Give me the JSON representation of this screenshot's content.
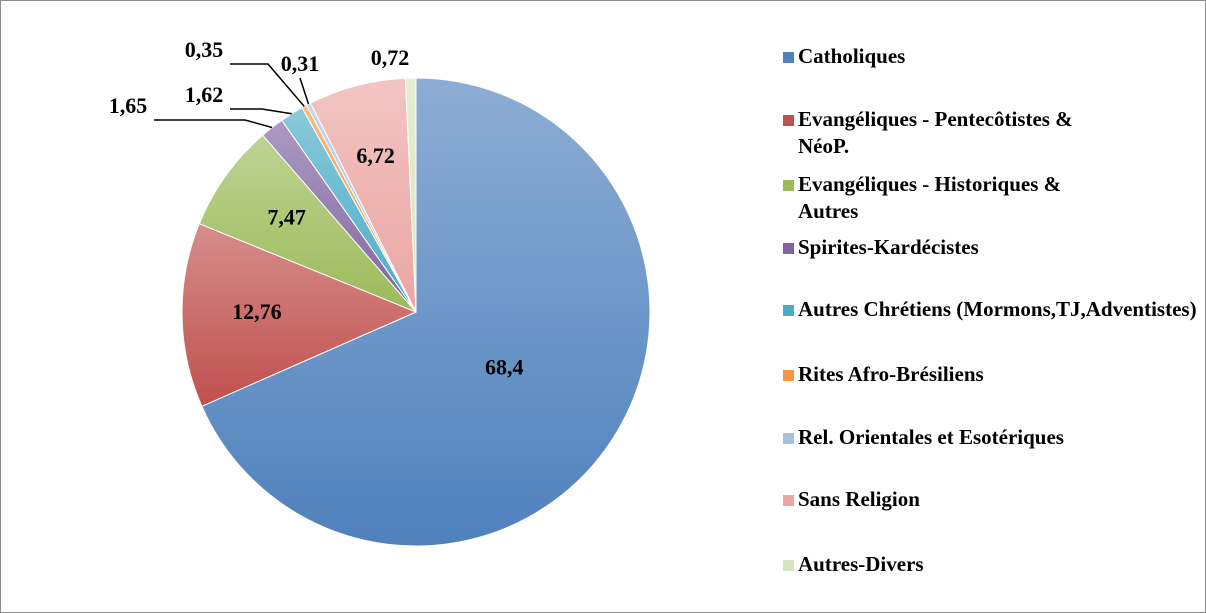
{
  "chart_data": {
    "type": "pie",
    "categories": [
      "Catholiques",
      "Evangéliques - Pentecôtistes & NéoP.",
      "Evangéliques - Historiques & Autres",
      "Spirites-Kardécistes",
      "Autres Chrétiens (Mormons,TJ,Adventistes)",
      "Rites Afro-Brésiliens",
      "Rel. Orientales et Esotériques",
      "Sans Religion",
      "Autres-Divers"
    ],
    "values": [
      68.4,
      12.76,
      7.47,
      1.65,
      1.62,
      0.35,
      0.31,
      6.72,
      0.72
    ],
    "value_labels": [
      "68,4",
      "12,76",
      "7,47",
      "1,65",
      "1,62",
      "0,35",
      "0,31",
      "6,72",
      "0,72"
    ],
    "colors": [
      "#4f81bd",
      "#c0504d",
      "#9bbb59",
      "#8064a2",
      "#4bacc6",
      "#f79646",
      "#a7c0e2",
      "#eba5a3",
      "#d7e4bd"
    ],
    "legend": "right"
  }
}
